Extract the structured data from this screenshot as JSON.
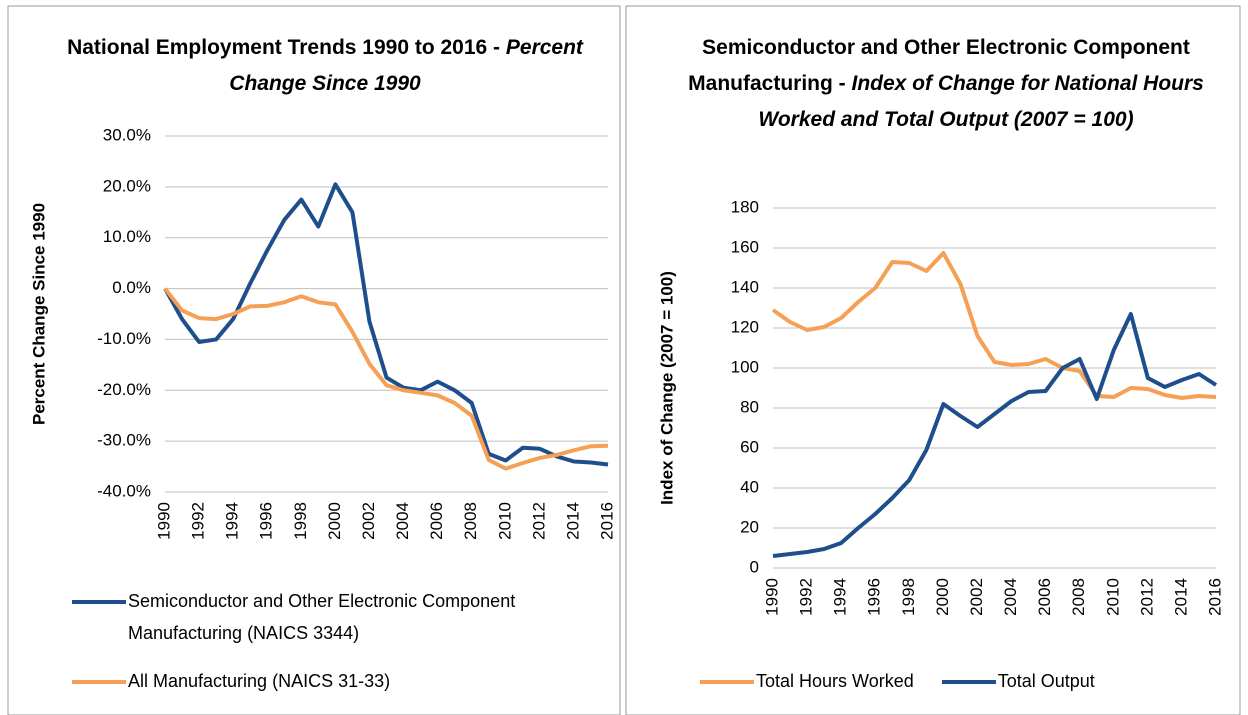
{
  "chart_data": [
    {
      "type": "line",
      "title": "National Employment Trends 1990 to 2016 -",
      "title_italic": "Percent Change Since 1990",
      "ylabel": "Percent Change Since 1990",
      "categories": [
        "1990",
        null,
        "1992",
        null,
        "1994",
        null,
        "1996",
        null,
        "1998",
        null,
        "2000",
        null,
        "2002",
        null,
        "2004",
        null,
        "2006",
        null,
        "2008",
        null,
        "2010",
        null,
        "2012",
        null,
        "2014",
        null,
        "2016"
      ],
      "series": [
        {
          "name": "Semiconductor and Other Electronic Component Manufacturing (NAICS 3344)",
          "color": "#1f4e8c",
          "values": [
            0,
            -6,
            -10.5,
            -10,
            -6,
            1,
            7.5,
            13.5,
            17.5,
            12.2,
            20.5,
            15,
            -6.5,
            -17.5,
            -19.5,
            -20,
            -18.3,
            -20,
            -22.5,
            -32.5,
            -33.8,
            -31.3,
            -31.5,
            -33,
            -34,
            -34.2,
            -34.6
          ]
        },
        {
          "name": "All Manufacturing (NAICS 31-33)",
          "color": "#f5a054",
          "values": [
            0,
            -4.3,
            -5.8,
            -6,
            -5,
            -3.5,
            -3.4,
            -2.7,
            -1.5,
            -2.7,
            -3.1,
            -8.5,
            -14.8,
            -19,
            -20,
            -20.5,
            -21,
            -22.5,
            -25,
            -33.7,
            -35.4,
            -34.3,
            -33.3,
            -32.7,
            -31.8,
            -31,
            -30.9
          ]
        }
      ],
      "ylim": [
        -40,
        30
      ],
      "yticks": [
        {
          "value": -40,
          "label": "-40.0%"
        },
        {
          "value": -30,
          "label": "-30.0%"
        },
        {
          "value": -20,
          "label": "-20.0%"
        },
        {
          "value": -10,
          "label": "-10.0%"
        },
        {
          "value": 0,
          "label": "0.0%"
        },
        {
          "value": 10,
          "label": "10.0%"
        },
        {
          "value": 20,
          "label": "20.0%"
        },
        {
          "value": 30,
          "label": "30.0%"
        }
      ],
      "grid": true,
      "legend": "bottom"
    },
    {
      "type": "line",
      "title": "Semiconductor and Other Electronic Component Manufacturing -",
      "title_italic": "Index of Change for National Hours Worked and Total Output (2007 = 100)",
      "ylabel": "Index of Change (2007 = 100)",
      "categories": [
        "1990",
        null,
        "1992",
        null,
        "1994",
        null,
        "1996",
        null,
        "1998",
        null,
        "2000",
        null,
        "2002",
        null,
        "2004",
        null,
        "2006",
        null,
        "2008",
        null,
        "2010",
        null,
        "2012",
        null,
        "2014",
        null,
        "2016"
      ],
      "series": [
        {
          "name": "Total Hours Worked",
          "color": "#f5a054",
          "values": [
            129,
            123,
            119,
            120.5,
            125,
            133,
            140,
            153,
            152.5,
            148.5,
            157.5,
            142,
            116,
            103,
            101.5,
            102,
            104.5,
            100,
            98.5,
            86,
            85.5,
            90,
            89.5,
            86.5,
            85,
            86,
            85.5
          ]
        },
        {
          "name": "Total Output",
          "color": "#1f4e8c",
          "values": [
            6,
            7,
            8,
            9.5,
            12.5,
            20,
            27,
            35,
            44,
            59,
            82,
            76,
            70.5,
            77,
            83.5,
            88,
            88.5,
            100,
            104.5,
            84.5,
            109,
            127,
            95,
            90.5,
            94,
            97,
            91.5
          ]
        }
      ],
      "ylim": [
        0,
        180
      ],
      "yticks": [
        0,
        20,
        40,
        60,
        80,
        100,
        120,
        140,
        160,
        180
      ],
      "grid": true,
      "legend": "bottom"
    }
  ]
}
